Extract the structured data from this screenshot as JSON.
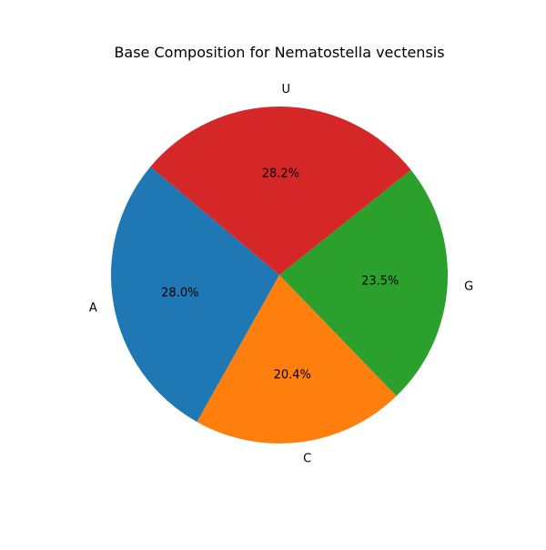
{
  "chart_data": {
    "type": "pie",
    "title": "Base Composition for Nematostella vectensis",
    "labels": [
      "A",
      "C",
      "G",
      "U"
    ],
    "values": [
      28.0,
      20.4,
      23.5,
      28.2
    ],
    "percent_labels": [
      "28.0%",
      "20.4%",
      "23.5%",
      "28.2%"
    ],
    "colors": [
      "#1f77b4",
      "#ff7f0e",
      "#2ca02c",
      "#d62728"
    ],
    "start_angle_deg": 140,
    "direction": "counterclockwise",
    "legend": "none"
  }
}
